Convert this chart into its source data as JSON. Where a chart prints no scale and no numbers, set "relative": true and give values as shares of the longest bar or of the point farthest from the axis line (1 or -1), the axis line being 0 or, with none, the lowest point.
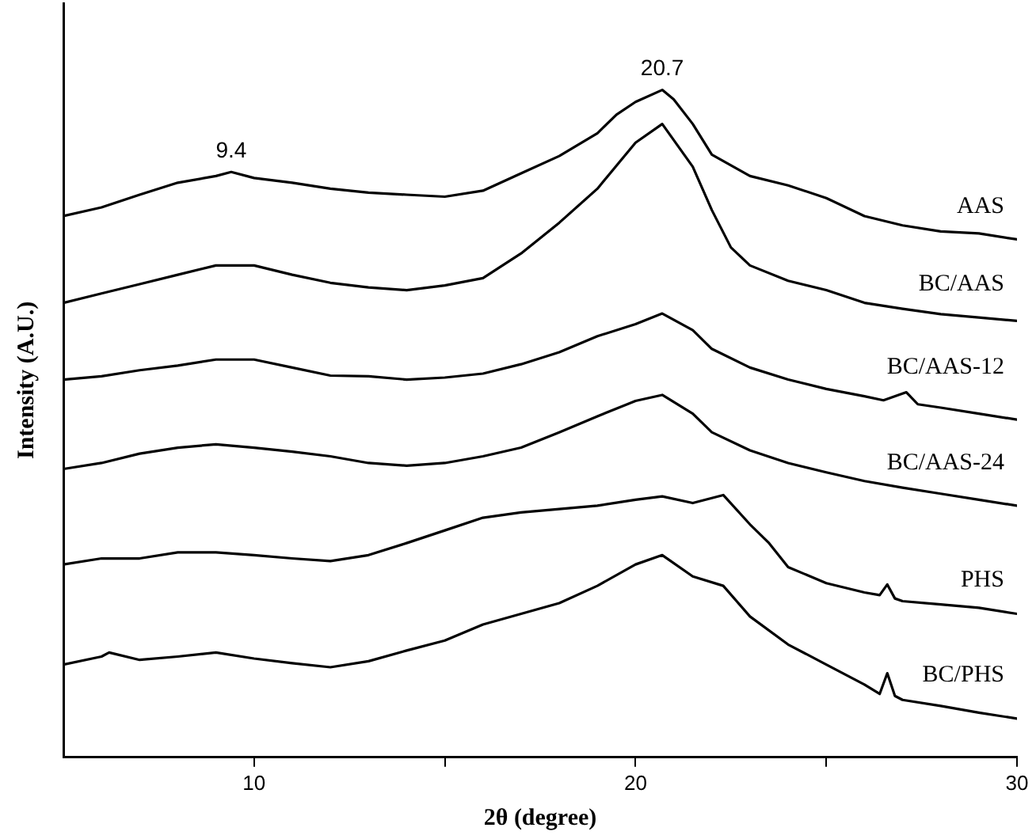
{
  "chart_data": {
    "type": "line",
    "relative": true,
    "xlabel": "2θ (degree)",
    "ylabel": "Intensity (A.U.)",
    "xlim": [
      5,
      30
    ],
    "xticks": [
      10,
      {
        "value": 15,
        "label": null
      },
      20,
      {
        "value": 25,
        "label": null
      },
      30
    ],
    "marker": "none",
    "line_style": "solid",
    "annotations": [
      {
        "text": "9.4",
        "x": 9.4,
        "y": 0.877
      },
      {
        "text": "20.7",
        "x": 20.7,
        "y": 1.0
      }
    ],
    "series": [
      {
        "name": "AAS",
        "color": "#000000",
        "x": [
          5,
          6,
          7,
          8,
          9,
          9.4,
          10,
          11,
          12,
          13,
          14,
          15,
          16,
          17,
          18,
          19,
          19.5,
          20,
          20.7,
          21,
          21.5,
          22,
          23,
          24,
          25,
          26,
          27,
          28,
          29,
          30
        ],
        "values": [
          0.811,
          0.824,
          0.843,
          0.861,
          0.871,
          0.877,
          0.868,
          0.861,
          0.852,
          0.846,
          0.843,
          0.84,
          0.849,
          0.875,
          0.901,
          0.935,
          0.963,
          0.982,
          1.0,
          0.986,
          0.949,
          0.903,
          0.871,
          0.857,
          0.838,
          0.811,
          0.797,
          0.788,
          0.785,
          0.776
        ]
      },
      {
        "name": "BC/AAS",
        "color": "#000000",
        "x": [
          5,
          6,
          7,
          8,
          9,
          10,
          11,
          12,
          13,
          14,
          15,
          16,
          17,
          18,
          19,
          20,
          20.7,
          21.5,
          22,
          22.5,
          23,
          24,
          25,
          26,
          27,
          28,
          29,
          30
        ],
        "values": [
          0.681,
          0.695,
          0.709,
          0.723,
          0.737,
          0.737,
          0.723,
          0.711,
          0.704,
          0.7,
          0.707,
          0.718,
          0.755,
          0.801,
          0.852,
          0.921,
          0.949,
          0.885,
          0.82,
          0.764,
          0.737,
          0.714,
          0.7,
          0.681,
          0.672,
          0.664,
          0.659,
          0.654
        ]
      },
      {
        "name": "BC/AAS-12",
        "color": "#000000",
        "x": [
          5,
          6,
          7,
          8,
          9,
          10,
          11,
          12,
          13,
          14,
          15,
          16,
          17,
          18,
          19,
          20,
          20.7,
          21.5,
          22,
          23,
          24,
          25,
          26,
          26.5,
          27.1,
          27.4,
          28,
          29,
          30
        ],
        "values": [
          0.566,
          0.571,
          0.58,
          0.587,
          0.596,
          0.596,
          0.584,
          0.572,
          0.571,
          0.566,
          0.569,
          0.575,
          0.589,
          0.607,
          0.631,
          0.649,
          0.665,
          0.64,
          0.612,
          0.584,
          0.566,
          0.552,
          0.541,
          0.535,
          0.547,
          0.529,
          0.524,
          0.515,
          0.506
        ]
      },
      {
        "name": "BC/AAS-24",
        "color": "#000000",
        "x": [
          5,
          6,
          7,
          8,
          9,
          10,
          11,
          12,
          13,
          14,
          15,
          16,
          17,
          18,
          19,
          20,
          20.7,
          21.5,
          22,
          23,
          24,
          25,
          26,
          27,
          28,
          29,
          30
        ],
        "values": [
          0.432,
          0.441,
          0.455,
          0.464,
          0.469,
          0.464,
          0.458,
          0.451,
          0.441,
          0.437,
          0.441,
          0.451,
          0.464,
          0.487,
          0.511,
          0.534,
          0.543,
          0.515,
          0.487,
          0.46,
          0.441,
          0.427,
          0.414,
          0.404,
          0.395,
          0.386,
          0.377
        ]
      },
      {
        "name": "PHS",
        "color": "#000000",
        "x": [
          5,
          6,
          7,
          8,
          9,
          10,
          11,
          12,
          13,
          14,
          15,
          16,
          17,
          18,
          19,
          20,
          20.7,
          21.5,
          22.3,
          23,
          23.5,
          24,
          25,
          26,
          26.4,
          26.6,
          26.8,
          27,
          28,
          29,
          30
        ],
        "values": [
          0.289,
          0.298,
          0.298,
          0.307,
          0.307,
          0.303,
          0.298,
          0.294,
          0.303,
          0.321,
          0.34,
          0.359,
          0.367,
          0.372,
          0.377,
          0.386,
          0.391,
          0.381,
          0.393,
          0.349,
          0.321,
          0.285,
          0.261,
          0.247,
          0.243,
          0.259,
          0.238,
          0.234,
          0.229,
          0.224,
          0.215
        ]
      },
      {
        "name": "BC/PHS",
        "color": "#000000",
        "x": [
          5,
          6,
          6.2,
          7,
          8,
          9,
          10,
          11,
          12,
          13,
          14,
          15,
          16,
          17,
          18,
          19,
          20,
          20.7,
          21.5,
          22.3,
          23,
          24,
          25,
          26,
          26.4,
          26.6,
          26.8,
          27,
          28,
          29,
          30
        ],
        "values": [
          0.139,
          0.151,
          0.157,
          0.146,
          0.151,
          0.157,
          0.148,
          0.141,
          0.135,
          0.144,
          0.16,
          0.175,
          0.199,
          0.215,
          0.231,
          0.257,
          0.289,
          0.303,
          0.271,
          0.257,
          0.211,
          0.169,
          0.139,
          0.109,
          0.095,
          0.126,
          0.092,
          0.086,
          0.077,
          0.067,
          0.058
        ]
      }
    ]
  }
}
